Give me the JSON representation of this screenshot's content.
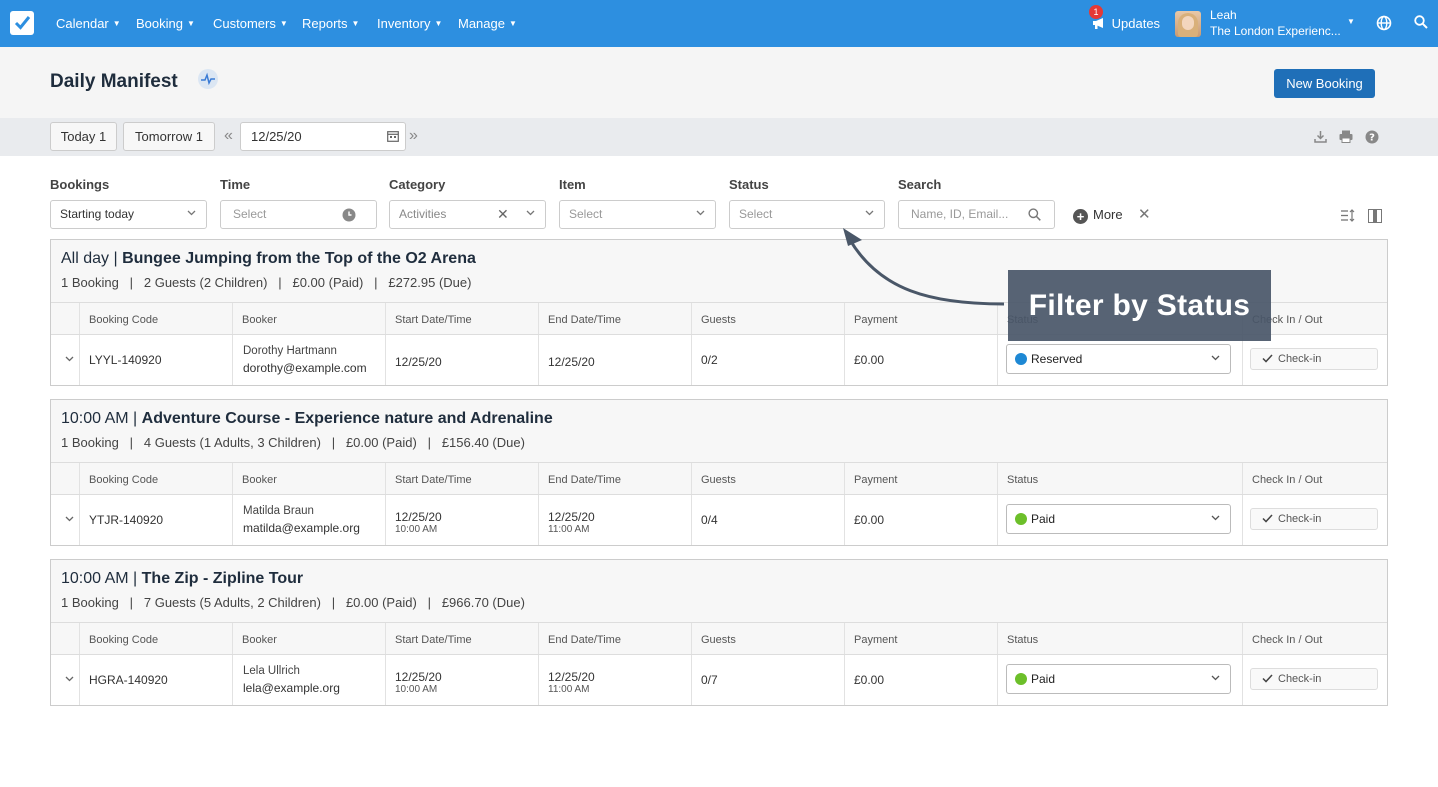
{
  "nav": {
    "items": [
      {
        "label": "Calendar"
      },
      {
        "label": "Booking"
      },
      {
        "label": "Customers"
      },
      {
        "label": "Reports"
      },
      {
        "label": "Inventory"
      },
      {
        "label": "Manage"
      }
    ],
    "updates_label": "Updates",
    "updates_count": "1",
    "user_name": "Leah",
    "user_org": "The London Experienc..."
  },
  "header": {
    "title": "Daily Manifest",
    "new_booking_label": "New Booking"
  },
  "datebar": {
    "today_label": "Today 1",
    "tomorrow_label": "Tomorrow 1",
    "date_value": "12/25/20"
  },
  "filters": {
    "bookings": {
      "label": "Bookings",
      "value": "Starting today"
    },
    "time": {
      "label": "Time",
      "placeholder": "Select"
    },
    "category": {
      "label": "Category",
      "value": "Activities"
    },
    "item": {
      "label": "Item",
      "placeholder": "Select"
    },
    "status": {
      "label": "Status",
      "placeholder": "Select"
    },
    "search": {
      "label": "Search",
      "placeholder": "Name, ID, Email..."
    },
    "more_label": "More"
  },
  "table_headers": [
    "Booking Code",
    "Booker",
    "Start Date/Time",
    "End Date/Time",
    "Guests",
    "Payment",
    "Status",
    "Check In / Out"
  ],
  "groups": [
    {
      "time": "All day |",
      "name": "Bungee Jumping from the Top of the O2 Arena",
      "summary": "1 Booking   |   2 Guests (2 Children)   |   £0.00 (Paid)   |   £272.95 (Due)",
      "row": {
        "code": "LYYL-140920",
        "booker_name": "Dorothy Hartmann",
        "booker_email": "dorothy@example.com",
        "start_date": "12/25/20",
        "start_time": "",
        "end_date": "12/25/20",
        "end_time": "",
        "guests": "0/2",
        "payment": "£0.00",
        "status": "Reserved",
        "status_color": "#1e88d4",
        "checkin": "Check-in"
      }
    },
    {
      "time": "10:00 AM |",
      "name": "Adventure Course - Experience nature and Adrenaline",
      "summary": "1 Booking   |   4 Guests (1 Adults, 3 Children)   |   £0.00 (Paid)   |   £156.40 (Due)",
      "row": {
        "code": "YTJR-140920",
        "booker_name": "Matilda Braun",
        "booker_email": "matilda@example.org",
        "start_date": "12/25/20",
        "start_time": "10:00 AM",
        "end_date": "12/25/20",
        "end_time": "11:00 AM",
        "guests": "0/4",
        "payment": "£0.00",
        "status": "Paid",
        "status_color": "#6cbf2a",
        "checkin": "Check-in"
      }
    },
    {
      "time": "10:00 AM |",
      "name": "The Zip - Zipline Tour",
      "summary": "1 Booking   |   7 Guests (5 Adults, 2 Children)   |   £0.00 (Paid)   |   £966.70 (Due)",
      "row": {
        "code": "HGRA-140920",
        "booker_name": "Lela Ullrich",
        "booker_email": "lela@example.org",
        "start_date": "12/25/20",
        "start_time": "10:00 AM",
        "end_date": "12/25/20",
        "end_time": "11:00 AM",
        "guests": "0/7",
        "payment": "£0.00",
        "status": "Paid",
        "status_color": "#6cbf2a",
        "checkin": "Check-in"
      }
    }
  ],
  "callout": {
    "text": "Filter by Status"
  },
  "icons": {
    "logo": "checkbox-logo-icon",
    "updates": "megaphone-icon",
    "globe": "globe-icon",
    "search": "search-icon",
    "pulse": "pulse-icon",
    "calendar": "calendar-icon",
    "download": "download-icon",
    "print": "print-icon",
    "help": "help-icon",
    "clock": "clock-icon",
    "sort": "sort-icon",
    "columns": "columns-icon"
  }
}
